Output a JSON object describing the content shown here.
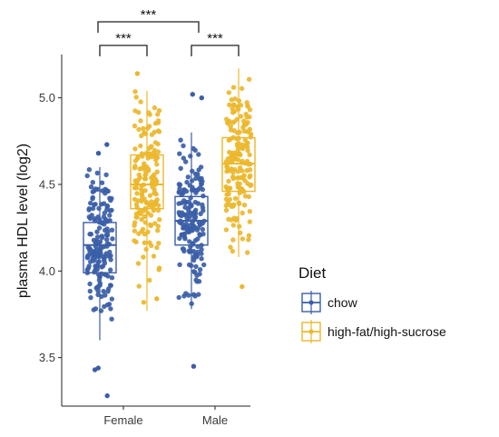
{
  "chart_data": {
    "type": "boxplot-jitter",
    "title": "",
    "xlabel": "",
    "ylabel": "plasma HDL level (log2)",
    "categories": [
      "Female",
      "Male"
    ],
    "ylim": [
      3.22,
      5.25
    ],
    "yticks": [
      3.5,
      4.0,
      4.5,
      5.0
    ],
    "ytick_labels": [
      "3.5",
      "4.0",
      "4.5",
      "5.0"
    ],
    "grid": false,
    "legend": {
      "title": "Diet",
      "position": "right",
      "entries": [
        "chow",
        "high-fat/high-sucrose"
      ]
    },
    "series": [
      {
        "name": "chow",
        "color": "#3b5ea7",
        "boxes": [
          {
            "category": "Female",
            "min": 3.6,
            "q1": 3.99,
            "median": 4.15,
            "q3": 4.28,
            "max": 4.6,
            "extremes": [
              4.73,
              4.68,
              3.44,
              3.43,
              3.28
            ]
          },
          {
            "category": "Male",
            "min": 3.78,
            "q1": 4.15,
            "median": 4.29,
            "q3": 4.43,
            "max": 4.8,
            "extremes": [
              5.02,
              5.0,
              3.45
            ]
          }
        ]
      },
      {
        "name": "high-fat/high-sucrose",
        "color": "#ecb72c",
        "boxes": [
          {
            "category": "Female",
            "min": 3.77,
            "q1": 4.36,
            "median": 4.5,
            "q3": 4.67,
            "max": 5.04,
            "extremes": [
              5.14,
              3.84
            ]
          },
          {
            "category": "Male",
            "min": 4.08,
            "q1": 4.46,
            "median": 4.62,
            "q3": 4.77,
            "max": 5.17,
            "extremes": [
              3.91
            ]
          }
        ]
      }
    ],
    "annotations": [
      {
        "label": "***",
        "from": "Female",
        "to": "Male",
        "level": "top"
      },
      {
        "label": "***",
        "from": "Female:chow",
        "to": "Female:high-fat/high-sucrose",
        "level": "inner"
      },
      {
        "label": "***",
        "from": "Male:chow",
        "to": "Male:high-fat/high-sucrose",
        "level": "inner"
      }
    ]
  }
}
